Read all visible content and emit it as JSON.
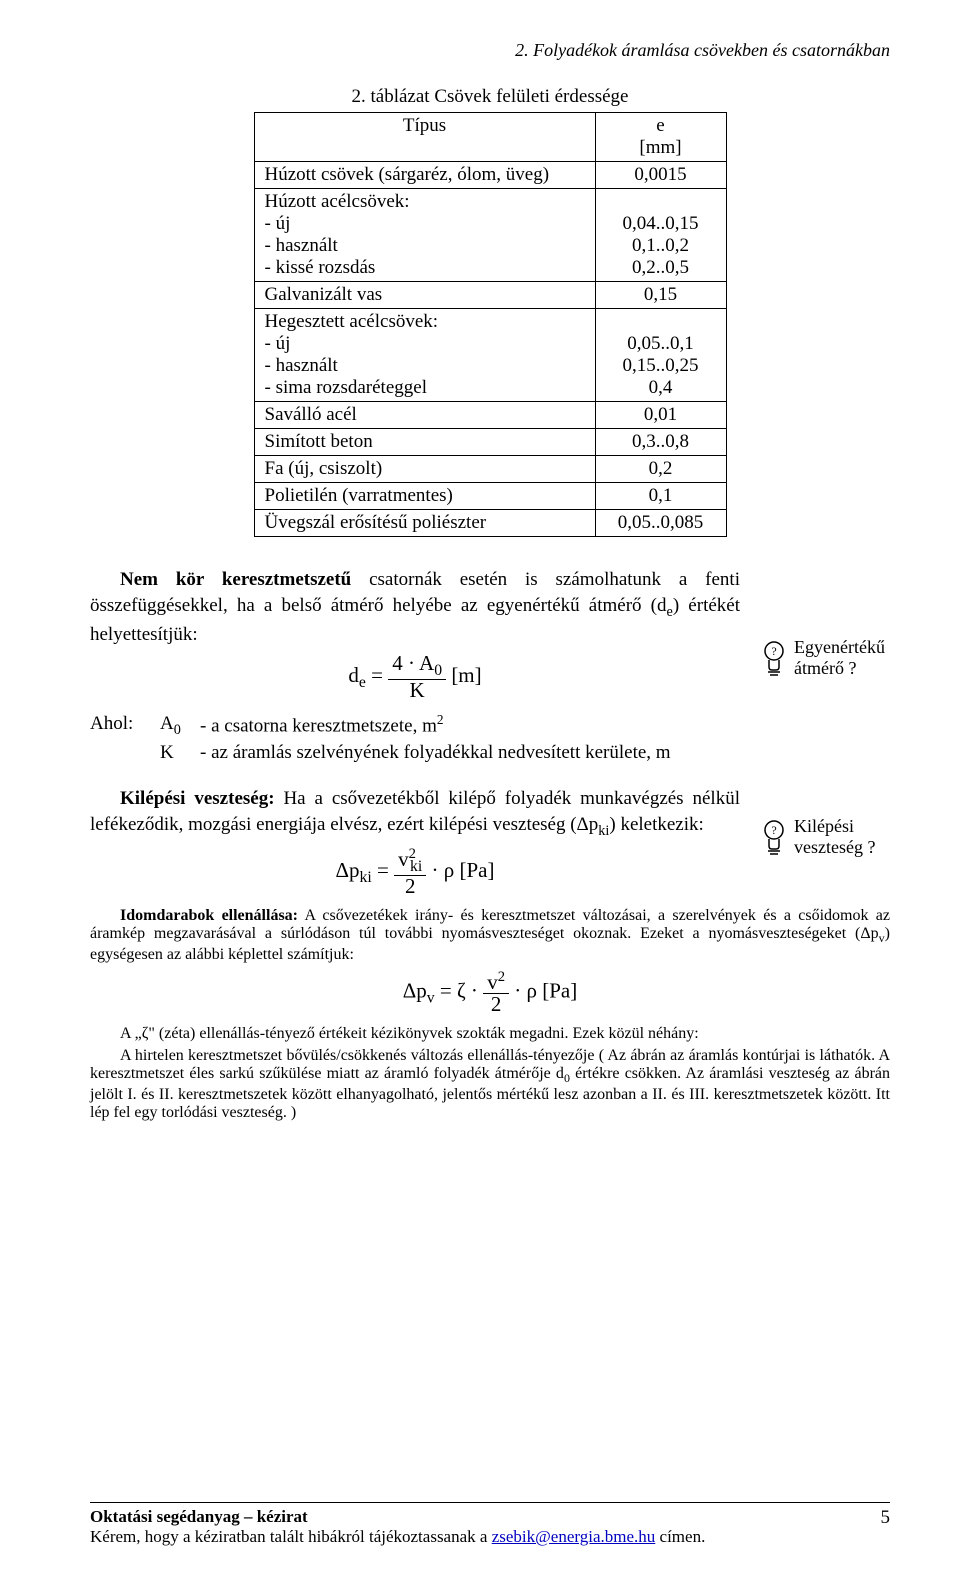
{
  "header": {
    "running_title": "2. Folyadékok áramlása csövekben és csatornákban"
  },
  "table": {
    "caption": "2. táblázat Csövek felületi érdessége",
    "col1_header": "Típus",
    "col2_header_line1": "e",
    "col2_header_line2": "[mm]",
    "rows": [
      {
        "label": "Húzott csövek (sárgaréz, ólom, üveg)",
        "value": "0,0015"
      },
      {
        "label": "Húzott acélcsövek:\n - új\n - használt\n - kissé rozsdás",
        "value": "\n0,04..0,15\n0,1..0,2\n0,2..0,5"
      },
      {
        "label": "Galvanizált vas",
        "value": "0,15"
      },
      {
        "label": "Hegesztett acélcsövek:\n - új\n - használt\n - sima rozsdaréteggel",
        "value": "\n0,05..0,1\n0,15..0,25\n0,4"
      },
      {
        "label": "Saválló acél",
        "value": "0,01"
      },
      {
        "label": "Simított beton",
        "value": "0,3..0,8"
      },
      {
        "label": "Fa (új, csiszolt)",
        "value": "0,2"
      },
      {
        "label": "Polietilén (varratmentes)",
        "value": "0,1"
      },
      {
        "label": "Üvegszál erősítésű poliészter",
        "value": "0,05..0,085"
      }
    ]
  },
  "para1": {
    "lead": "Nem kör keresztmetszetű",
    "rest": " csatornák esetén is számolhatunk a fenti összefüggésekkel, ha a belső átmérő helyébe az egyenértékű átmérő (d",
    "sub": "e",
    "tail": ") értékét helyettesítjük:"
  },
  "formula1": {
    "lhs": "d",
    "lhs_sub": "e",
    "eq": " = ",
    "num": "4 · A",
    "num_sub": "0",
    "den": "K",
    "unit": "   [m]"
  },
  "where": {
    "label": "Ahol:",
    "rows": [
      {
        "sym": "A",
        "sym_sub": "0",
        "desc": "- a csatorna keresztmetszete, m",
        "desc_sup": "2"
      },
      {
        "sym": "K",
        "sym_sub": "",
        "desc": "- az áramlás szelvényének folyadékkal nedvesített kerülete, m",
        "desc_sup": ""
      }
    ]
  },
  "side": {
    "note1": "Egyenértékű átmérő ?",
    "note2": "Kilépési veszteség ?"
  },
  "para2": {
    "lead": "Kilépési veszteség:",
    "text": " Ha a csővezetékből kilépő folyadék munkavégzés nélkül lefékeződik, mozgási energiája elvész, ezért kilépési veszteség (Δp",
    "sub": "ki",
    "tail": ") keletkezik:"
  },
  "formula2": {
    "lhs": "Δp",
    "lhs_sub": "ki",
    "eq": " = ",
    "num": "v",
    "num_sub": "ki",
    "num_sup": "2",
    "den": "2",
    "rho": " · ρ   [Pa]"
  },
  "para3": {
    "lead": "Idomdarabok ellenállása:",
    "text": " A csővezetékek irány- és keresztmetszet változásai, a szerelvények és a csőidomok az áramkép megzavarásával a súrlódáson túl további nyomásveszteséget okoznak. Ezeket a nyomásveszteségeket (Δp",
    "sub": "v",
    "tail": ") egységesen az alábbi képlettel számítjuk:"
  },
  "formula3": {
    "lhs": "Δp",
    "lhs_sub": "v",
    "eq": " = ζ · ",
    "num": "v",
    "num_sup": "2",
    "den": "2",
    "rho": " · ρ   [Pa]"
  },
  "para4": "A „ζ\" (zéta) ellenállás-tényező értékeit kézikönyvek szokták megadni. Ezek közül néhány:",
  "para5": {
    "a": "A hirtelen keresztmetszet bővülés/csökkenés változás ellenállás-tényezője ( Az ábrán az áramlás kontúrjai is láthatók. A keresztmetszet éles sarkú szűkülése miatt az áramló folyadék átmérője d",
    "sub": "0",
    "b": " értékre csökken. Az áramlási veszteség az ábrán jelölt I. és II. keresztmetszetek között elhanyagolható, jelentős mértékű lesz azonban a II. és III. keresztmetszetek között. Itt lép fel egy torlódási veszteség. )"
  },
  "footer": {
    "line1": "Oktatási segédanyag – kézirat",
    "line2a": "Kérem, hogy a kéziratban talált hibákról tájékoztassanak a ",
    "email": "zsebik@energia.bme.hu",
    "line2b": " címen.",
    "page_number": "5"
  }
}
